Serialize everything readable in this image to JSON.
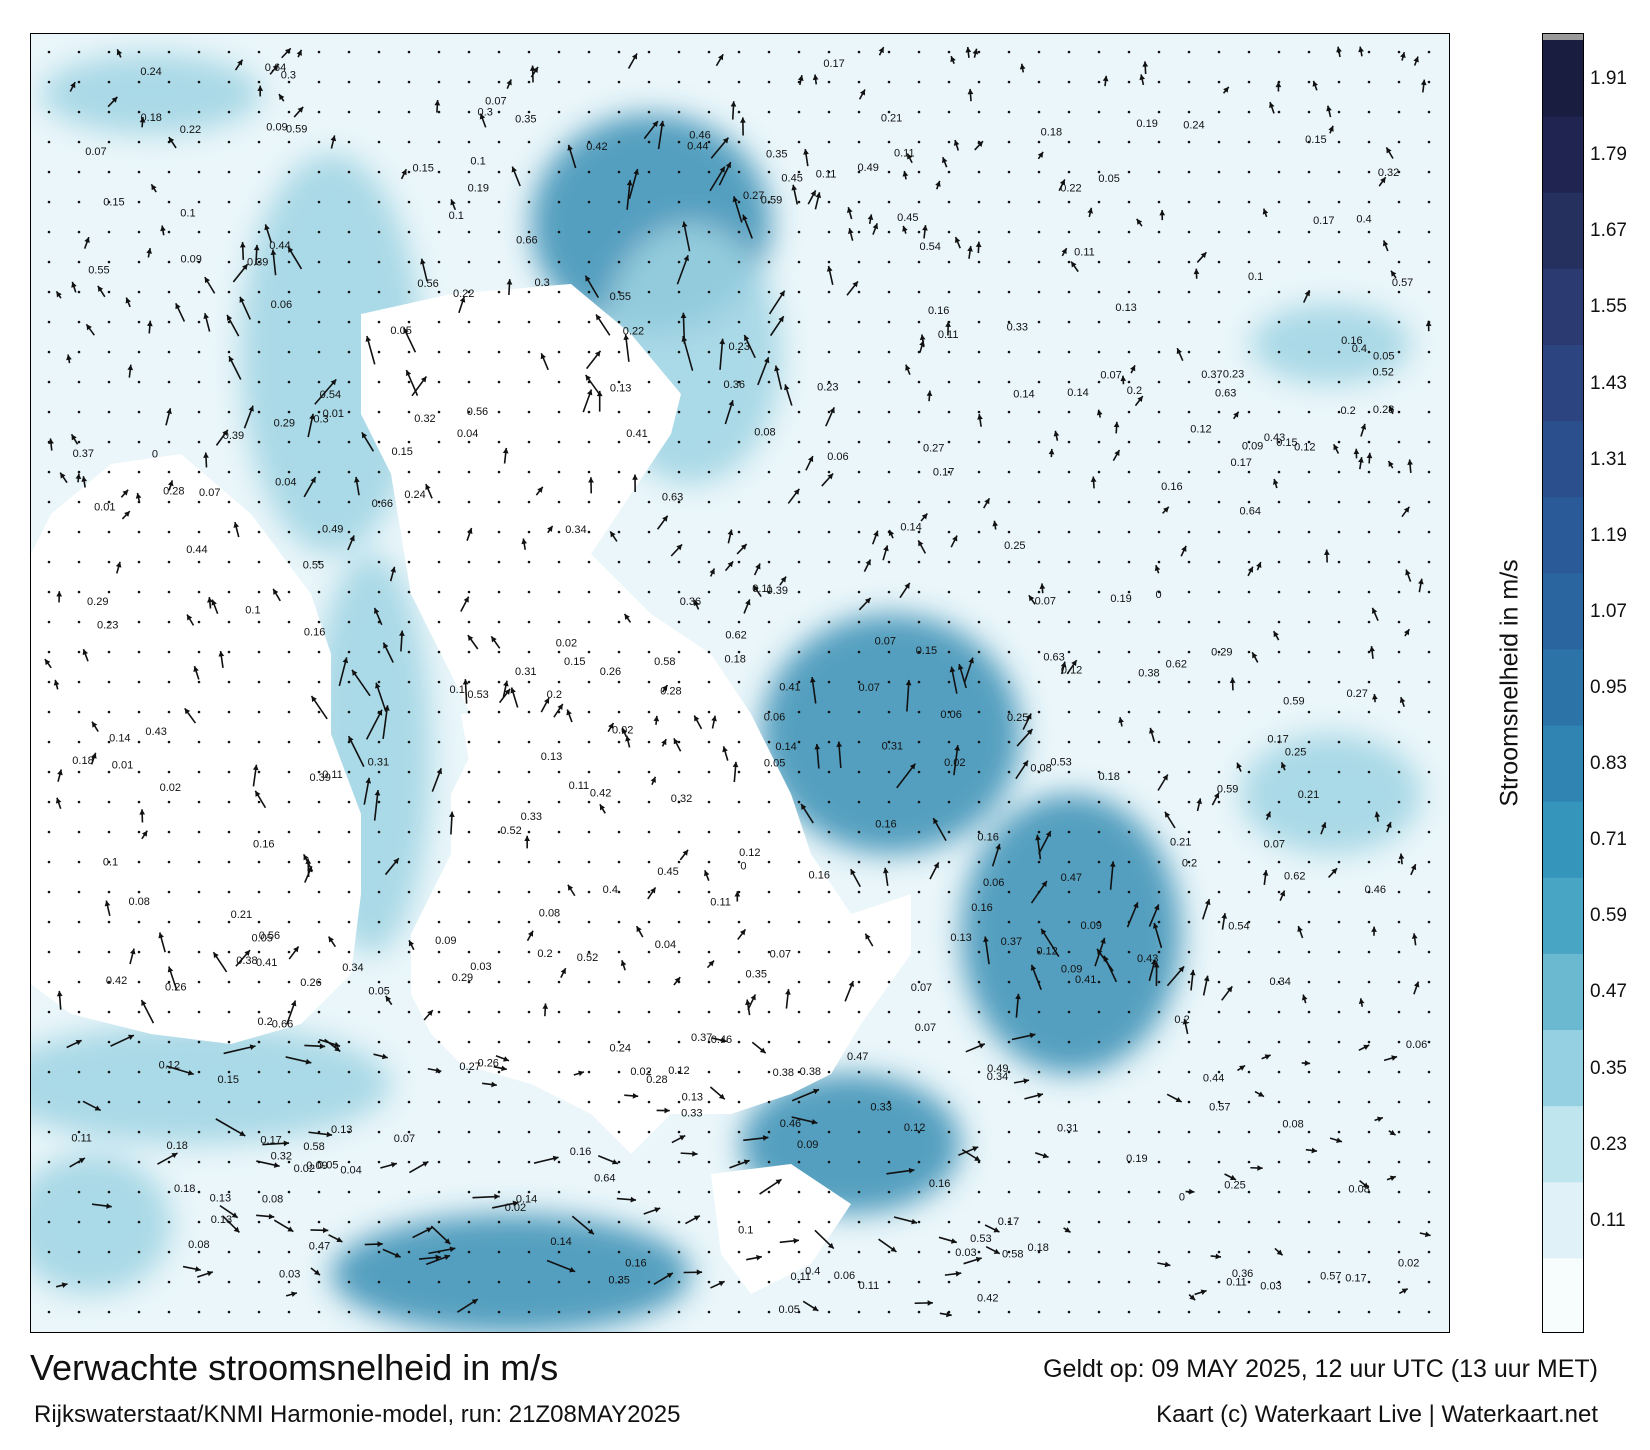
{
  "title": "Verwachte stroomsnelheid in m/s",
  "subtitle": "Rijkswaterstaat/KNMI Harmonie-model, run: 21Z08MAY2025",
  "valid_time": "Geldt op: 09 MAY 2025, 12 uur UTC (13 uur MET)",
  "credit": "Kaart (c) Waterkaart Live | Waterkaart.net",
  "colorbar": {
    "label": "Stroomsnelheid in m/s",
    "ticks": [
      "1.91",
      "1.79",
      "1.67",
      "1.55",
      "1.43",
      "1.31",
      "1.19",
      "1.07",
      "0.95",
      "0.83",
      "0.71",
      "0.59",
      "0.47",
      "0.35",
      "0.23",
      "0.11"
    ],
    "colors": [
      "#f7fcfd",
      "#e0f2f7",
      "#bfe5ef",
      "#95d0e2",
      "#6bb9d1",
      "#49a5c4",
      "#3695bb",
      "#2f84b2",
      "#2c74a8",
      "#2a65a0",
      "#2a5a98",
      "#2b4f8c",
      "#2c4580",
      "#2b3a70",
      "#26305f",
      "#1f2450",
      "#191d40"
    ]
  },
  "water_colors": {
    "low": "#eaf6fa",
    "mid": "#9fd3e3",
    "high": "#3b8fb5",
    "land": "#ffffff"
  },
  "velocity_labels": [
    "0.11",
    "0",
    "0.08",
    "0.26",
    "0.13",
    "0.02",
    "0.1",
    "0.16",
    "0.07",
    "0.09",
    "0.1",
    "0.07",
    "0.11",
    "0.16",
    "0.18",
    "0.05",
    "0.06",
    "0.17",
    "0.23",
    "0.29",
    "0.31",
    "0.25",
    "0.12",
    "0.15",
    "0.18",
    "0.16",
    "0.17",
    "0.2",
    "0.13",
    "0.14",
    "0.12",
    "0.09",
    "0.15",
    "0.11",
    "0.07",
    "0.08",
    "0.05",
    "0.04",
    "0.02",
    "0.03",
    "0.34",
    "0.35",
    "0.4",
    "0.41",
    "0.38",
    "0.44",
    "0.42",
    "0.39",
    "0.59",
    "0.46",
    "0.37",
    "0.32",
    "0.3",
    "0.21",
    "0.33",
    "0.24",
    "0.19",
    "0.22",
    "0.27",
    "0.28",
    "0.36",
    "0.2",
    "0.01",
    "0.06",
    "0.14",
    "0.52",
    "0.57",
    "0.63",
    "0.66",
    "0.54",
    "0.55",
    "0.64",
    "0.45",
    "0.47",
    "0.43",
    "0.49",
    "0.53",
    "0.56",
    "0.58",
    "0.62"
  ]
}
